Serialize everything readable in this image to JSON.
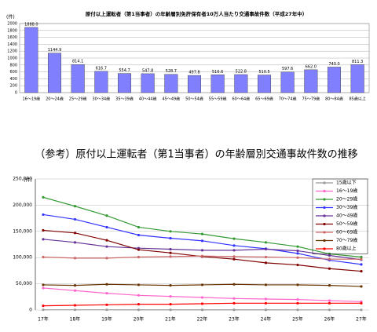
{
  "chart_data": [
    {
      "type": "bar",
      "title": "原付以上運転者（第1当事者）の年齢層別免許保有者10万人当たり交通事故件数（平成27年中）",
      "y_unit": "(件)",
      "color": "#8080ff",
      "grid": true,
      "categories": [
        "16～19歳",
        "20～24歳",
        "25～29歳",
        "30～34歳",
        "35～39歳",
        "40～44歳",
        "45～49歳",
        "50～54歳",
        "55～59歳",
        "60～64歳",
        "65～69歳",
        "70～74歳",
        "75～79歳",
        "80～84歳",
        "85歳以上"
      ],
      "values": [
        1888.0,
        1144.9,
        814.1,
        616.7,
        554.7,
        547.8,
        528.7,
        497.8,
        516.6,
        522.8,
        510.5,
        597.6,
        662.0,
        740.0,
        811.3
      ],
      "value_labels": [
        "1888.0",
        "1144.9",
        "814.1",
        "616.7",
        "554.7",
        "547.8",
        "528.7",
        "497.8",
        "516.6",
        "522.8",
        "510.5",
        "597.6",
        "662.0",
        "740.0",
        "811.3"
      ],
      "ylim": [
        0,
        2000
      ],
      "yticks": [
        0,
        200,
        400,
        600,
        800,
        1000,
        1200,
        1400,
        1600,
        1800,
        2000
      ]
    },
    {
      "type": "line",
      "title": "（参考）原付以上運転者（第1当事者）の年齢層別交通事故件数の推移",
      "y_unit": "(件)",
      "grid": true,
      "legend": "upper right",
      "categories": [
        "17年",
        "18年",
        "19年",
        "20年",
        "21年",
        "22年",
        "23年",
        "24年",
        "25年",
        "26年",
        "27年"
      ],
      "ylim": [
        0,
        250000
      ],
      "yticks": [
        {
          "value": 0,
          "label": "0"
        },
        {
          "value": 50000,
          "label": "50,000"
        },
        {
          "value": 100000,
          "label": "100,000"
        },
        {
          "value": 150000,
          "label": "150,000"
        },
        {
          "value": 200000,
          "label": "200,000"
        },
        {
          "value": 250000,
          "label": "250,000"
        }
      ],
      "series": [
        {
          "name": "15歳以下",
          "color": "#999999",
          "values": [
            500,
            500,
            500,
            400,
            400,
            400,
            400,
            400,
            300,
            300,
            300
          ]
        },
        {
          "name": "16～19歳",
          "color": "#ff66cc",
          "values": [
            42000,
            37000,
            32000,
            28000,
            26000,
            24000,
            22000,
            21000,
            20000,
            18000,
            16000
          ]
        },
        {
          "name": "20～29歳",
          "color": "#339933",
          "values": [
            215000,
            198000,
            180000,
            158000,
            150000,
            145000,
            136000,
            129000,
            121000,
            107000,
            101000
          ]
        },
        {
          "name": "30～39歳",
          "color": "#3333ff",
          "values": [
            182000,
            173000,
            158000,
            143000,
            137000,
            132000,
            123000,
            117000,
            108000,
            95000,
            87000
          ]
        },
        {
          "name": "40～49歳",
          "color": "#663399",
          "values": [
            135000,
            129000,
            121000,
            118000,
            116000,
            114000,
            114000,
            116000,
            113000,
            104000,
            96000
          ]
        },
        {
          "name": "50～59歳",
          "color": "#800000",
          "values": [
            152000,
            147000,
            133000,
            115000,
            109000,
            102000,
            97000,
            90000,
            86000,
            79000,
            74000
          ]
        },
        {
          "name": "60～69歳",
          "color": "#cc6666",
          "values": [
            101000,
            99000,
            99000,
            101000,
            102000,
            103000,
            102000,
            101000,
            100000,
            97000,
            97000
          ]
        },
        {
          "name": "70～79歳",
          "color": "#663300",
          "values": [
            48000,
            47000,
            49000,
            48000,
            47000,
            48000,
            49000,
            48000,
            48000,
            47000,
            45000
          ]
        },
        {
          "name": "80歳以上",
          "color": "#ff0000",
          "values": [
            8000,
            9000,
            10000,
            11000,
            11000,
            12000,
            13000,
            13000,
            13000,
            13000,
            13000
          ]
        }
      ]
    }
  ]
}
